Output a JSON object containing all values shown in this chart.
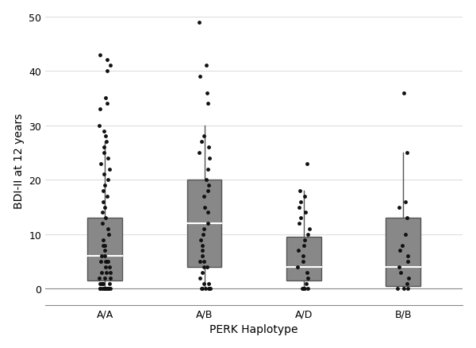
{
  "categories": [
    "A/A",
    "A/B",
    "A/D",
    "B/B"
  ],
  "xlabel": "PERK Haplotype",
  "ylabel": "BDI-II at 12 years",
  "ylim": [
    -3,
    50
  ],
  "yticks": [
    0,
    10,
    20,
    30,
    40,
    50
  ],
  "box_color": "#888888",
  "median_color": "#ffffff",
  "whisker_color": "#555555",
  "flier_color": "#111111",
  "background_color": "#ffffff",
  "boxes": [
    {
      "q1": 1.5,
      "median": 6.0,
      "q3": 13.0,
      "whisker_low": 0.0,
      "whisker_high": 27.0
    },
    {
      "q1": 4.0,
      "median": 12.0,
      "q3": 20.0,
      "whisker_low": 0.0,
      "whisker_high": 30.0
    },
    {
      "q1": 1.5,
      "median": 4.0,
      "q3": 9.5,
      "whisker_low": 0.0,
      "whisker_high": 18.0
    },
    {
      "q1": 0.5,
      "median": 4.0,
      "q3": 13.0,
      "whisker_low": 0.0,
      "whisker_high": 25.0
    }
  ],
  "scatter_AA": [
    0,
    0,
    0,
    0,
    0,
    0,
    0,
    0,
    0,
    0,
    0,
    0,
    1,
    1,
    1,
    1,
    1,
    2,
    2,
    2,
    3,
    3,
    3,
    4,
    4,
    5,
    5,
    5,
    5,
    6,
    6,
    7,
    8,
    8,
    9,
    10,
    11,
    12,
    13,
    14,
    15,
    16,
    17,
    18,
    19,
    20,
    21,
    22,
    23,
    24,
    25,
    26,
    27,
    28,
    29,
    30,
    33,
    34,
    35,
    40,
    41,
    42,
    43
  ],
  "scatter_AB": [
    0,
    0,
    0,
    0,
    0,
    0,
    1,
    1,
    2,
    3,
    4,
    4,
    5,
    5,
    6,
    7,
    8,
    9,
    10,
    11,
    12,
    14,
    15,
    17,
    18,
    19,
    20,
    22,
    24,
    25,
    26,
    27,
    28,
    34,
    36,
    39,
    41,
    49
  ],
  "scatter_AD": [
    0,
    0,
    0,
    0,
    1,
    2,
    3,
    4,
    5,
    6,
    7,
    8,
    9,
    10,
    11,
    12,
    13,
    14,
    15,
    16,
    17,
    18,
    23
  ],
  "scatter_BB": [
    0,
    0,
    0,
    1,
    2,
    3,
    4,
    5,
    6,
    7,
    8,
    10,
    13,
    15,
    16,
    25,
    36
  ],
  "box_width": 0.35,
  "linewidth": 1.0,
  "marker_size": 3.5,
  "label_fontsize": 10,
  "tick_fontsize": 9,
  "xlabel_fontsize": 10
}
